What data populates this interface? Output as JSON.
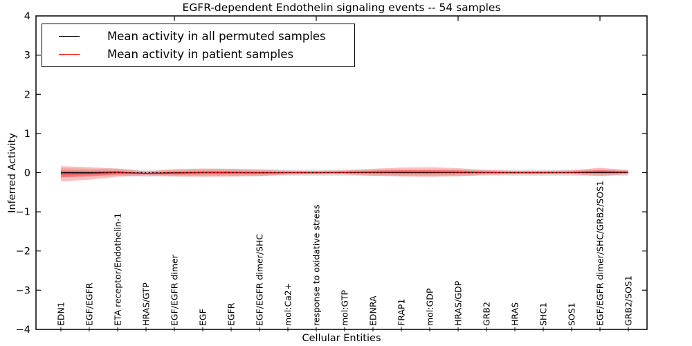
{
  "title": "EGFR-dependent Endothelin signaling events -- 54 samples",
  "legend": {
    "items": [
      {
        "label": "Mean activity in all permuted samples",
        "color": "#000000"
      },
      {
        "label": "Mean activity in patient samples",
        "color": "#ff0000"
      }
    ]
  },
  "axes": {
    "ylabel": "Inferred Activity",
    "xlabel": "Cellular Entities",
    "ylim": [
      -4,
      4
    ],
    "yticks": [
      4,
      3,
      2,
      1,
      0,
      -1,
      -2,
      -3,
      -4
    ]
  },
  "colors": {
    "permuted_line": "#000000",
    "patient_line": "#ff0000",
    "permuted_band": "#999999",
    "patient_band": "#ff0000",
    "zero_line": "#000000"
  },
  "chart_data": {
    "type": "line",
    "title": "EGFR-dependent Endothelin signaling events -- 54 samples",
    "xlabel": "Cellular Entities",
    "ylabel": "Inferred Activity",
    "ylim": [
      -4,
      4
    ],
    "grid": false,
    "legend_position": "upper left",
    "categories": [
      "EDN1",
      "EGF/EGFR",
      "ETA receptor/Endothelin-1",
      "HRAS/GTP",
      "EGF/EGFR dimer",
      "EGF",
      "EGFR",
      "EGF/EGFR dimer/SHC",
      "mol:Ca2+",
      "response to oxidative stress",
      "mol:GTP",
      "EDNRA",
      "FRAP1",
      "mol:GDP",
      "HRAS/GDP",
      "GRB2",
      "HRAS",
      "SHC1",
      "SOS1",
      "EGF/EGFR dimer/SHC/GRB2/SOS1",
      "GRB2/SOS1"
    ],
    "top_tick_indices": [
      4,
      9,
      14,
      19
    ],
    "series": [
      {
        "name": "Mean activity in all permuted samples",
        "color": "#000000",
        "mean": [
          0.0,
          0.0,
          0.01,
          -0.02,
          0.0,
          0.0,
          0.0,
          0.0,
          0.0,
          0.0,
          0.0,
          0.0,
          0.0,
          0.0,
          0.0,
          0.0,
          0.0,
          0.0,
          0.0,
          0.0,
          0.0
        ],
        "std": [
          0.12,
          0.1,
          0.09,
          0.09,
          0.09,
          0.09,
          0.09,
          0.09,
          0.08,
          0.08,
          0.08,
          0.08,
          0.08,
          0.08,
          0.08,
          0.08,
          0.08,
          0.08,
          0.08,
          0.08,
          0.08
        ]
      },
      {
        "name": "Mean activity in patient samples",
        "color": "#ff0000",
        "mean": [
          -0.03,
          -0.02,
          0.0,
          -0.02,
          -0.01,
          0.0,
          0.0,
          -0.005,
          0.0,
          0.0,
          0.005,
          0.01,
          0.015,
          0.015,
          0.01,
          0.005,
          0.0,
          0.0,
          0.005,
          0.02,
          0.01
        ],
        "std": [
          0.195,
          0.16,
          0.105,
          0.05,
          0.09,
          0.105,
          0.1,
          0.08,
          0.05,
          0.045,
          0.05,
          0.09,
          0.115,
          0.125,
          0.105,
          0.06,
          0.045,
          0.045,
          0.05,
          0.105,
          0.05
        ]
      }
    ],
    "zero_reference_line": 0
  }
}
